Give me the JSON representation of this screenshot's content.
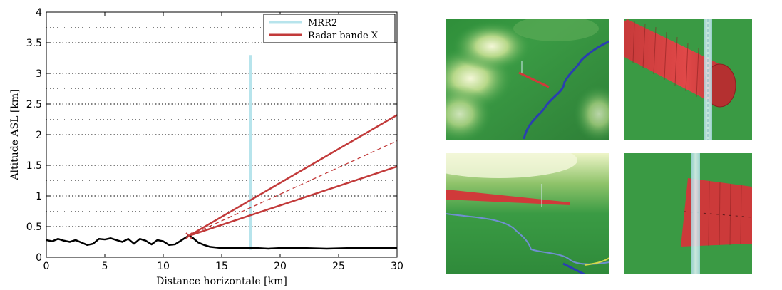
{
  "chart_data": {
    "type": "line",
    "xlabel": "Distance horizontale [km]",
    "ylabel": "Altitude ASL [km]",
    "xlim": [
      0,
      30
    ],
    "ylim": [
      0,
      4
    ],
    "xticks": [
      0,
      5,
      10,
      15,
      20,
      25,
      30
    ],
    "yticks": [
      0,
      0.5,
      1,
      1.5,
      2,
      2.5,
      3,
      3.5,
      4
    ],
    "grid": "horizontal dotted",
    "legend_position": "top-right",
    "colors": {
      "mrr2": "#b7e4ec",
      "radar": "#c23a3a",
      "terrain": "#000000"
    },
    "legend": [
      {
        "label": "MRR2",
        "color": "#b7e4ec"
      },
      {
        "label": "Radar bande X",
        "color": "#c23a3a"
      }
    ],
    "series": [
      {
        "name": "MRR2",
        "kind": "vertical-beam",
        "x": [
          17.5,
          17.5
        ],
        "y": [
          0.12,
          3.3
        ]
      },
      {
        "name": "Radar bande X",
        "kind": "beam-upper",
        "x": [
          12.2,
          30
        ],
        "y": [
          0.35,
          2.32
        ]
      },
      {
        "name": "Radar bande X",
        "kind": "beam-axis",
        "style": "dashed",
        "x": [
          12.2,
          30
        ],
        "y": [
          0.35,
          1.9
        ]
      },
      {
        "name": "Radar bande X",
        "kind": "beam-lower",
        "x": [
          12.2,
          30
        ],
        "y": [
          0.35,
          1.48
        ]
      },
      {
        "name": "terrain",
        "kind": "terrain-profile",
        "x": [
          0,
          0.5,
          1,
          1.5,
          2,
          2.5,
          3,
          3.5,
          4,
          4.5,
          5,
          5.5,
          6,
          6.5,
          7,
          7.5,
          8,
          8.5,
          9,
          9.5,
          10,
          10.5,
          11,
          11.5,
          12,
          12.2,
          12.5,
          13,
          13.5,
          14,
          14.5,
          15,
          16,
          17,
          18,
          19,
          20,
          22,
          24,
          26,
          28,
          30
        ],
        "y": [
          0.28,
          0.26,
          0.3,
          0.27,
          0.25,
          0.28,
          0.24,
          0.2,
          0.22,
          0.3,
          0.29,
          0.31,
          0.28,
          0.25,
          0.3,
          0.22,
          0.3,
          0.27,
          0.21,
          0.28,
          0.26,
          0.2,
          0.21,
          0.27,
          0.33,
          0.35,
          0.32,
          0.24,
          0.2,
          0.17,
          0.16,
          0.15,
          0.15,
          0.15,
          0.15,
          0.14,
          0.15,
          0.15,
          0.14,
          0.15,
          0.15,
          0.15
        ]
      }
    ]
  },
  "images": [
    {
      "name": "terrain-overview-image",
      "description_icon": "terrain-3d-view"
    },
    {
      "name": "beam-closeup-top-image",
      "description_icon": "radar-beam-closeup"
    },
    {
      "name": "terrain-lowangle-image",
      "description_icon": "terrain-low-angle-view"
    },
    {
      "name": "beam-closeup-bottom-image",
      "description_icon": "radar-beam-side-view"
    }
  ]
}
